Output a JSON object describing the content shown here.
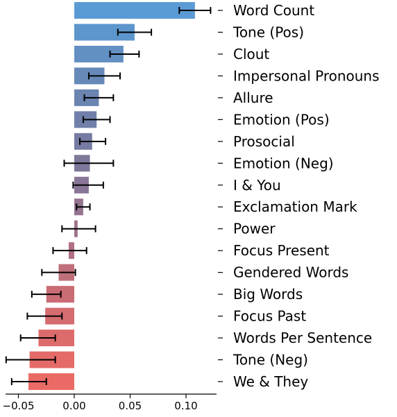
{
  "chart_data": {
    "type": "bar",
    "orientation": "horizontal",
    "title": "",
    "xlabel": "",
    "ylabel": "",
    "xlim": [
      -0.062,
      0.128
    ],
    "grid": false,
    "legend": "none",
    "xticks": [
      -0.05,
      0.0,
      0.05,
      0.1
    ],
    "xtick_labels": [
      "−0.05",
      "0.00",
      "0.05",
      "0.10"
    ],
    "categories": [
      "Word Count",
      "Tone (Pos)",
      "Clout",
      "Impersonal Pronouns",
      "Allure",
      "Emotion (Pos)",
      "Prosocial",
      "Emotion (Neg)",
      "I & You",
      "Exclamation Mark",
      "Power",
      "Focus Present",
      "Gendered Words",
      "Big Words",
      "Focus Past",
      "Words Per Sentence",
      "Tone (Neg)",
      "We & They"
    ],
    "values": [
      0.108,
      0.054,
      0.044,
      0.027,
      0.022,
      0.02,
      0.016,
      0.014,
      0.013,
      0.008,
      0.003,
      -0.005,
      -0.014,
      -0.025,
      -0.026,
      -0.032,
      -0.04,
      -0.041
    ],
    "error_low": [
      0.094,
      0.039,
      0.032,
      0.013,
      0.009,
      0.008,
      0.005,
      -0.009,
      -0.001,
      0.002,
      -0.011,
      -0.019,
      -0.029,
      -0.038,
      -0.042,
      -0.048,
      -0.061,
      -0.056
    ],
    "error_high": [
      0.122,
      0.069,
      0.058,
      0.041,
      0.035,
      0.032,
      0.028,
      0.035,
      0.026,
      0.014,
      0.019,
      0.011,
      0.001,
      -0.012,
      -0.011,
      -0.017,
      -0.017,
      -0.025
    ],
    "colors": [
      "#5b9bd5",
      "#5d96cc",
      "#6290c3",
      "#6689b8",
      "#6b84b0",
      "#7080aa",
      "#757ba2",
      "#7e789a",
      "#897696",
      "#94738f",
      "#a07289",
      "#b16f82",
      "#bf6f7a",
      "#ca6c74",
      "#d56c70",
      "#de6b6b",
      "#e46b68",
      "#ea6b65"
    ],
    "error_color": "#000000"
  }
}
